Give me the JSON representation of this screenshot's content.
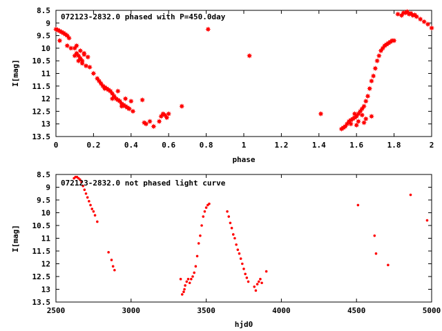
{
  "chart_data": [
    {
      "type": "scatter",
      "title": "072123-2832.0 phased with P=450.0day",
      "xlabel": "phase",
      "ylabel": "I[mag]",
      "xlim": [
        0,
        2
      ],
      "ylim": [
        13.5,
        8.5
      ],
      "y_inverted": true,
      "x_ticks": [
        "0",
        "0.2",
        "0.4",
        "0.6",
        "0.8",
        "1",
        "1.2",
        "1.4",
        "1.6",
        "1.8",
        "2"
      ],
      "y_ticks": [
        "8.5",
        "9",
        "9.5",
        "10",
        "10.5",
        "11",
        "11.5",
        "12",
        "12.5",
        "13",
        "13.5"
      ],
      "marker": "filled-star",
      "color": "#ff0000",
      "grid": false,
      "series": [
        {
          "x": [
            0.0,
            0.01,
            0.02,
            0.03,
            0.04,
            0.05,
            0.06,
            0.07,
            0.02,
            0.06,
            0.08,
            0.1,
            0.11,
            0.12,
            0.13,
            0.14,
            0.15,
            0.1,
            0.12,
            0.14,
            0.16,
            0.18,
            0.2,
            0.11,
            0.13,
            0.15,
            0.17,
            0.22,
            0.23,
            0.24,
            0.25,
            0.26,
            0.27,
            0.28,
            0.29,
            0.3,
            0.31,
            0.32,
            0.33,
            0.34,
            0.35,
            0.36,
            0.37,
            0.38,
            0.39,
            0.4,
            0.26,
            0.3,
            0.33,
            0.35,
            0.37,
            0.39,
            0.41,
            0.46,
            0.47,
            0.48,
            0.5,
            0.52,
            0.55,
            0.56,
            0.57,
            0.58,
            0.59,
            0.6,
            0.67,
            0.81,
            1.03,
            1.41,
            1.52,
            1.53,
            1.54,
            1.55,
            1.56,
            1.57,
            1.58,
            1.59,
            1.6,
            1.61,
            1.62,
            1.63,
            1.64,
            1.65,
            1.66,
            1.67,
            1.68,
            1.69,
            1.7,
            1.71,
            1.72,
            1.73,
            1.74,
            1.75,
            1.76,
            1.77,
            1.78,
            1.79,
            1.8,
            1.57,
            1.59,
            1.61,
            1.63,
            1.65,
            1.6,
            1.64,
            1.68,
            1.82,
            1.84,
            1.86,
            1.88,
            1.9,
            1.92,
            1.94,
            1.96,
            1.98,
            2.0,
            1.85,
            1.87,
            1.89,
            1.91
          ],
          "y": [
            9.25,
            9.28,
            9.32,
            9.36,
            9.4,
            9.45,
            9.5,
            9.6,
            9.7,
            9.9,
            10.0,
            10.0,
            10.2,
            10.3,
            10.4,
            10.5,
            10.2,
            10.3,
            10.5,
            10.6,
            10.7,
            10.75,
            11.0,
            9.9,
            10.1,
            10.25,
            10.35,
            11.2,
            11.3,
            11.4,
            11.5,
            11.55,
            11.6,
            11.65,
            11.7,
            11.8,
            11.9,
            12.0,
            12.05,
            12.1,
            12.2,
            12.25,
            12.3,
            12.35,
            12.4,
            12.1,
            11.6,
            12.0,
            11.7,
            12.3,
            12.0,
            12.4,
            12.5,
            12.05,
            12.95,
            13.0,
            12.9,
            13.1,
            12.9,
            12.7,
            12.6,
            12.65,
            12.75,
            12.6,
            12.3,
            9.25,
            10.3,
            12.6,
            13.2,
            13.15,
            13.1,
            13.0,
            12.9,
            12.85,
            12.8,
            12.75,
            12.7,
            12.6,
            12.5,
            12.4,
            12.3,
            12.1,
            11.9,
            11.6,
            11.3,
            11.1,
            10.8,
            10.5,
            10.3,
            10.1,
            10.0,
            9.9,
            9.85,
            9.8,
            9.75,
            9.7,
            9.7,
            13.0,
            12.6,
            12.9,
            12.65,
            12.8,
            13.05,
            12.95,
            12.7,
            8.65,
            8.7,
            8.6,
            8.65,
            8.7,
            8.75,
            8.85,
            8.95,
            9.05,
            9.2,
            8.6,
            8.55,
            8.62,
            8.68
          ]
        }
      ]
    },
    {
      "type": "scatter",
      "title": "072123-2832.0 not phased light curve",
      "xlabel": "hjd0",
      "ylabel": "I[mag]",
      "xlim": [
        2500,
        5000
      ],
      "ylim": [
        13.5,
        8.5
      ],
      "y_inverted": true,
      "x_ticks": [
        "2500",
        "3000",
        "3500",
        "4000",
        "4500",
        "5000"
      ],
      "y_ticks": [
        "8.5",
        "9",
        "9.5",
        "10",
        "10.5",
        "11",
        "11.5",
        "12",
        "12.5",
        "13",
        "13.5"
      ],
      "marker": "small-dot",
      "color": "#ff0000",
      "grid": false,
      "series": [
        {
          "x": [
            2620,
            2630,
            2640,
            2650,
            2660,
            2670,
            2680,
            2690,
            2700,
            2710,
            2720,
            2730,
            2740,
            2750,
            2760,
            2775,
            2850,
            2870,
            2880,
            2890,
            3330,
            3340,
            3350,
            3355,
            3360,
            3370,
            3380,
            3390,
            3400,
            3410,
            3420,
            3430,
            3440,
            3450,
            3460,
            3470,
            3480,
            3490,
            3500,
            3510,
            3520,
            3640,
            3650,
            3660,
            3670,
            3680,
            3690,
            3700,
            3710,
            3720,
            3730,
            3740,
            3750,
            3760,
            3770,
            3780,
            3820,
            3830,
            3840,
            3850,
            3860,
            3870,
            3900,
            4510,
            4620,
            4630,
            4710,
            4860,
            4970
          ],
          "y": [
            8.65,
            8.6,
            8.6,
            8.65,
            8.7,
            8.8,
            8.95,
            9.1,
            9.25,
            9.4,
            9.55,
            9.7,
            9.85,
            9.95,
            10.1,
            10.35,
            11.55,
            11.85,
            12.1,
            12.25,
            12.6,
            13.2,
            13.1,
            13.0,
            12.85,
            12.7,
            12.6,
            12.75,
            12.6,
            12.5,
            12.35,
            12.1,
            11.7,
            11.2,
            10.9,
            10.5,
            10.15,
            9.95,
            9.8,
            9.7,
            9.65,
            9.95,
            10.15,
            10.4,
            10.6,
            10.85,
            11.0,
            11.25,
            11.45,
            11.6,
            11.8,
            12.0,
            12.2,
            12.4,
            12.55,
            12.7,
            12.9,
            13.05,
            12.8,
            12.7,
            12.6,
            12.75,
            12.3,
            9.7,
            10.9,
            11.6,
            12.05,
            9.3,
            10.3
          ]
        }
      ]
    }
  ]
}
